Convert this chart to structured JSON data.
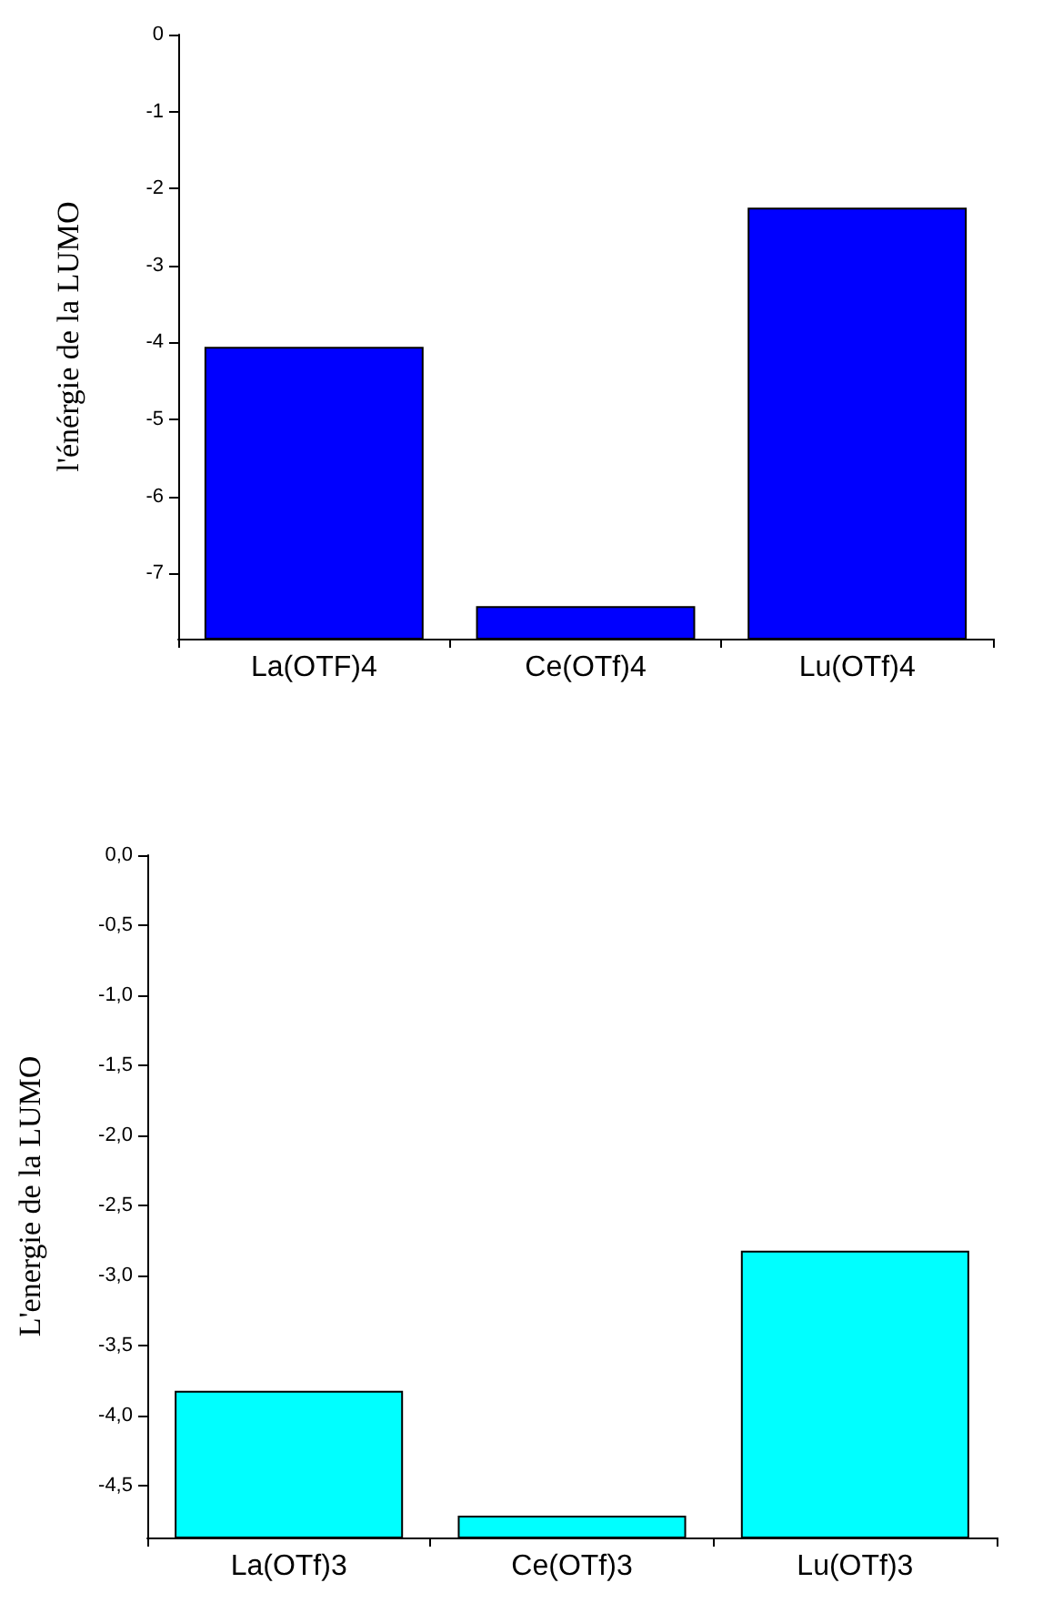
{
  "chart_data": [
    {
      "type": "bar",
      "ylabel": "l'énérgie de la LUMO",
      "categories": [
        "La(OTF)4",
        "Ce(OTf)4",
        "Lu(OTf)4"
      ],
      "base": [
        -7.85,
        -7.85,
        -7.85
      ],
      "values": [
        3.78,
        0.41,
        5.59
      ],
      "color": "#0000ff",
      "ylim": [
        -7.85,
        0
      ],
      "yticks": [
        -7,
        -6,
        -5,
        -4,
        -3,
        -2,
        -1,
        0
      ],
      "grid": false
    },
    {
      "type": "bar",
      "ylabel": "L'energie de la LUMO",
      "categories": [
        "La(OTf)3",
        "Ce(OTf)3",
        "Lu(OTf)3"
      ],
      "base": [
        -4.87,
        -4.87,
        -4.87
      ],
      "values": [
        1.04,
        0.15,
        2.04
      ],
      "color": "#00ffff",
      "ylim": [
        -4.87,
        0
      ],
      "yticks": [
        {
          "value": -4.5,
          "label": "-4,5"
        },
        {
          "value": -4,
          "label": "-4,0"
        },
        {
          "value": -3.5,
          "label": "-3,5"
        },
        {
          "value": -3,
          "label": "-3,0"
        },
        {
          "value": -2.5,
          "label": "-2,5"
        },
        {
          "value": -2,
          "label": "-2,0"
        },
        {
          "value": -1.5,
          "label": "-1,5"
        },
        {
          "value": -1,
          "label": "-1,0"
        },
        {
          "value": -0.5,
          "label": "-0,5"
        },
        {
          "value": 0,
          "label": "0,0"
        }
      ],
      "grid": false
    }
  ]
}
